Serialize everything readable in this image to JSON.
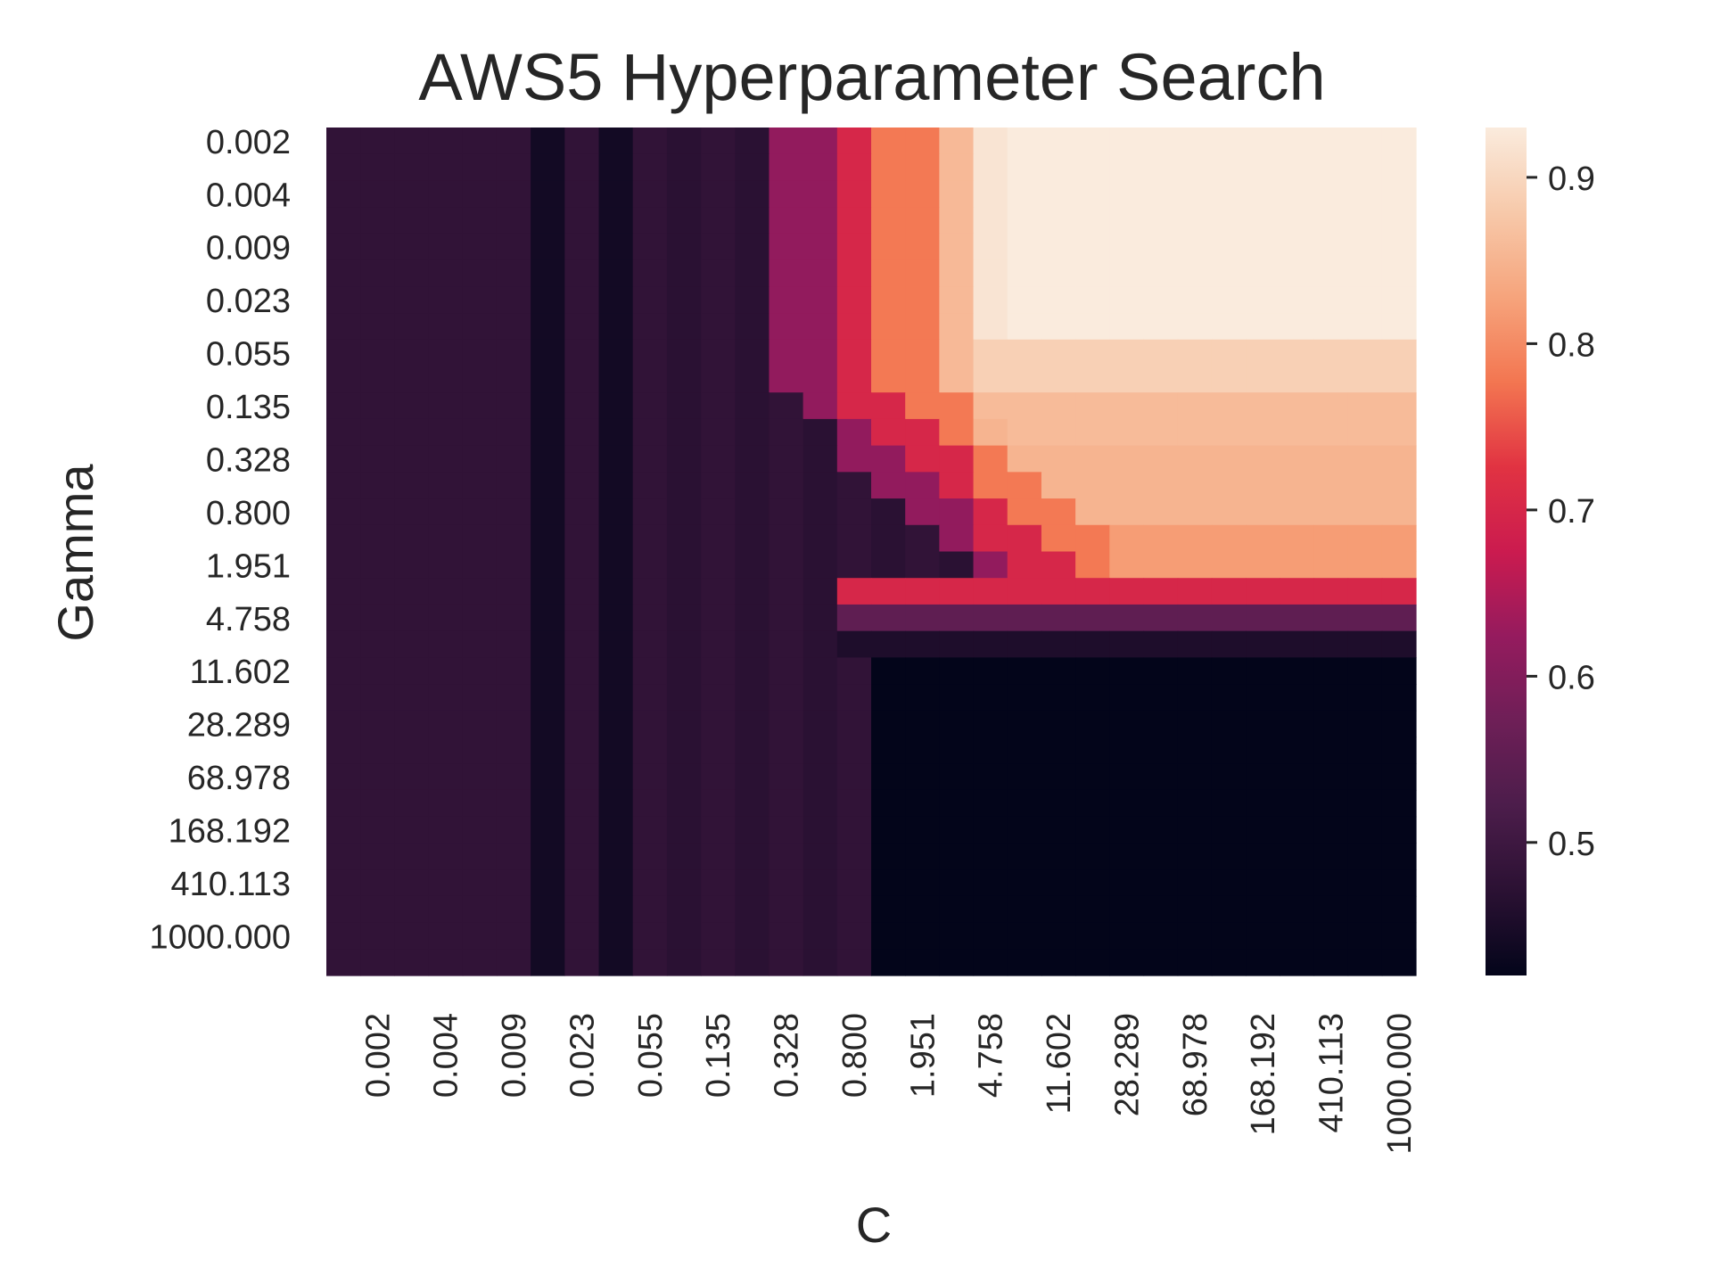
{
  "chart_data": {
    "type": "heatmap",
    "title": "AWS5 Hyperparameter Search",
    "xlabel": "C",
    "ylabel": "Gamma",
    "x_ticklabels": [
      "0.002",
      "0.004",
      "0.009",
      "0.023",
      "0.055",
      "0.135",
      "0.328",
      "0.800",
      "1.951",
      "4.758",
      "11.602",
      "28.289",
      "68.978",
      "168.192",
      "410.113",
      "1000.000"
    ],
    "y_ticklabels": [
      "0.002",
      "0.004",
      "0.009",
      "0.023",
      "0.055",
      "0.135",
      "0.328",
      "0.800",
      "1.951",
      "4.758",
      "11.602",
      "28.289",
      "68.978",
      "168.192",
      "410.113",
      "1000.000"
    ],
    "grid_cols": 32,
    "grid_rows": 32,
    "x_range": [
      0.001,
      1000
    ],
    "y_range": [
      0.001,
      1000
    ],
    "log_scale": true,
    "colorbar": {
      "range": [
        0.42,
        0.93
      ],
      "ticks": [
        0.5,
        0.6,
        0.7,
        0.8,
        0.9
      ],
      "ticklabels": [
        "0.5",
        "0.6",
        "0.7",
        "0.8",
        "0.9"
      ],
      "colormap": "rocket"
    },
    "grid": false,
    "value_summary": {
      "left_band_value": 0.48,
      "dark_column_value": 0.44,
      "best_region_max": 0.93,
      "row_gamma_1_951": 0.7,
      "row_gamma_4_758": 0.55,
      "row_gamma_11_602_plus_high_C": 0.42
    }
  }
}
